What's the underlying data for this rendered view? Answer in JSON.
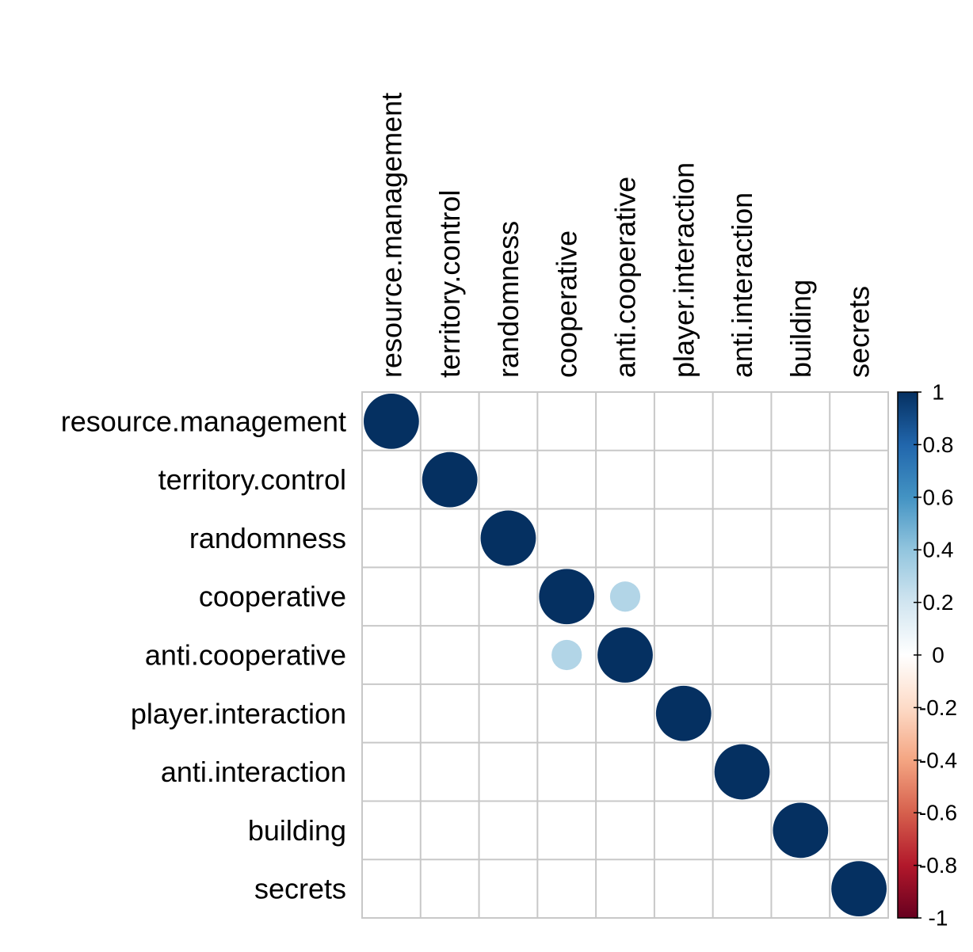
{
  "chart_data": {
    "type": "heatmap",
    "title": "",
    "xlabel": "",
    "ylabel": "",
    "variables": [
      "resource.management",
      "territory.control",
      "randomness",
      "cooperative",
      "anti.cooperative",
      "player.interaction",
      "anti.interaction",
      "building",
      "secrets"
    ],
    "matrix": [
      [
        1,
        0,
        0,
        0,
        0,
        0,
        0,
        0,
        0
      ],
      [
        0,
        1,
        0,
        0,
        0,
        0,
        0,
        0,
        0
      ],
      [
        0,
        0,
        1,
        0,
        0,
        0,
        0,
        0,
        0
      ],
      [
        0,
        0,
        0,
        1,
        0.3,
        0,
        0,
        0,
        0
      ],
      [
        0,
        0,
        0,
        0.3,
        1,
        0,
        0,
        0,
        0
      ],
      [
        0,
        0,
        0,
        0,
        0,
        1,
        0,
        0,
        0
      ],
      [
        0,
        0,
        0,
        0,
        0,
        0,
        1,
        0,
        0
      ],
      [
        0,
        0,
        0,
        0,
        0,
        0,
        0,
        1,
        0
      ],
      [
        0,
        0,
        0,
        0,
        0,
        0,
        0,
        0,
        1
      ]
    ],
    "legend": {
      "position": "right",
      "range": [
        -1,
        1
      ],
      "ticks": [
        "1",
        "0.8",
        "0.6",
        "0.4",
        "0.2",
        "0",
        "-0.2",
        "-0.4",
        "-0.6",
        "-0.8",
        "-1"
      ],
      "colors": [
        "#67001F",
        "#B2182B",
        "#D6604D",
        "#F4A582",
        "#FDDBC7",
        "#FFFFFF",
        "#D1E5F0",
        "#92C5DE",
        "#4393C3",
        "#2166AC",
        "#053061"
      ]
    },
    "grid": true
  }
}
